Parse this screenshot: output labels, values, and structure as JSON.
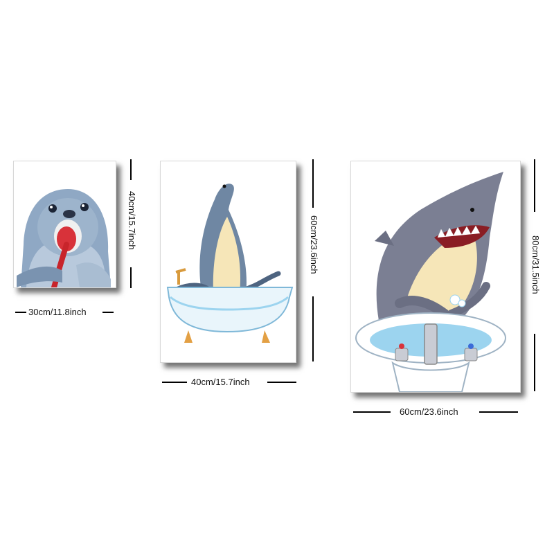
{
  "panels": [
    {
      "id": "seal-toothbrush",
      "icon": "seal-brushing-teeth-icon",
      "width_label": "30cm/11.8inch",
      "height_label": "40cm/15.7inch"
    },
    {
      "id": "sea-lion-bathtub",
      "icon": "sea-lion-bathtub-icon",
      "width_label": "40cm/15.7inch",
      "height_label": "60cm/23.6inch"
    },
    {
      "id": "shark-sink",
      "icon": "shark-washing-hands-icon",
      "width_label": "60cm/23.6inch",
      "height_label": "80cm/31.5inch"
    }
  ],
  "colors": {
    "seal": "#8fa8c4",
    "sea_lion": "#6f87a3",
    "shark": "#7b7f93",
    "belly": "#f6e6b8",
    "water": "#9cd4ef",
    "dimension_line": "#000000"
  }
}
